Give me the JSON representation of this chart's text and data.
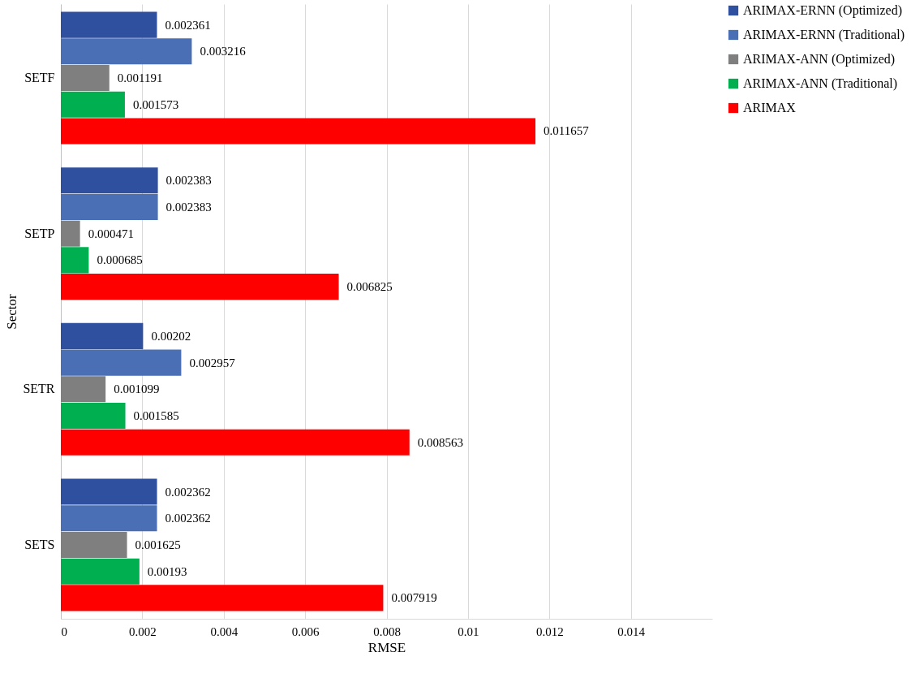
{
  "chart_data": {
    "type": "bar",
    "orientation": "horizontal",
    "xlabel": "RMSE",
    "ylabel": "Sector",
    "categories": [
      "SETF",
      "SETP",
      "SETR",
      "SETS"
    ],
    "series": [
      {
        "name": "ARIMAX-ERNN (Optimized)",
        "color": "#2f4f9f",
        "values": [
          0.002361,
          0.002383,
          0.00202,
          0.002362
        ]
      },
      {
        "name": "ARIMAX-ERNN (Traditional)",
        "color": "#4a6fb5",
        "values": [
          0.003216,
          0.002383,
          0.002957,
          0.002362
        ]
      },
      {
        "name": "ARIMAX-ANN (Optimized)",
        "color": "#7f7f7f",
        "values": [
          0.001191,
          0.000471,
          0.001099,
          0.001625
        ]
      },
      {
        "name": "ARIMAX-ANN (Traditional)",
        "color": "#00b050",
        "values": [
          0.001573,
          0.000685,
          0.001585,
          0.00193
        ]
      },
      {
        "name": "ARIMAX",
        "color": "#ff0000",
        "values": [
          0.011657,
          0.006825,
          0.008563,
          0.007919
        ]
      }
    ],
    "xlim": [
      0,
      0.016
    ],
    "xticks": [
      0,
      0.002,
      0.004,
      0.006,
      0.008,
      0.01,
      0.012,
      0.014
    ],
    "grid": "x",
    "legend": "right",
    "data_labels": true
  }
}
